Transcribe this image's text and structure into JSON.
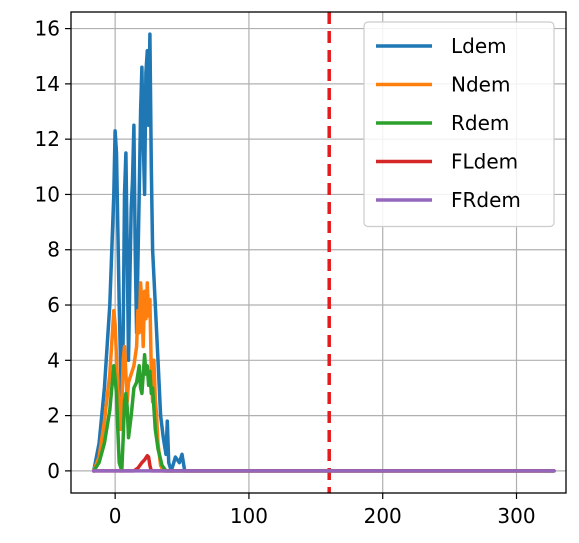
{
  "chart_data": {
    "type": "line",
    "title": "",
    "xlabel": "",
    "ylabel": "",
    "xlim": [
      -33,
      337
    ],
    "ylim": [
      -0.8,
      16.6
    ],
    "grid": true,
    "legend_position": "upper-right",
    "x_ticks": [
      0,
      100,
      200,
      300
    ],
    "y_ticks": [
      0,
      2,
      4,
      6,
      8,
      10,
      12,
      14,
      16
    ],
    "reference_line": {
      "x": 160,
      "color": "#e41a1c",
      "style": "dashed"
    },
    "series": [
      {
        "name": "Ldem",
        "color": "#1f77b4",
        "points": [
          [
            -16,
            0
          ],
          [
            -12,
            1
          ],
          [
            -8,
            3
          ],
          [
            -4,
            6
          ],
          [
            -1,
            10
          ],
          [
            0,
            12.3
          ],
          [
            1,
            11.5
          ],
          [
            3,
            6
          ],
          [
            5,
            2
          ],
          [
            6,
            5
          ],
          [
            7,
            10
          ],
          [
            8,
            11.5
          ],
          [
            9,
            8
          ],
          [
            10,
            4
          ],
          [
            11,
            7
          ],
          [
            12,
            9.5
          ],
          [
            13,
            10.5
          ],
          [
            14,
            12.5
          ],
          [
            15,
            8
          ],
          [
            16,
            5
          ],
          [
            17,
            7.5
          ],
          [
            18,
            10
          ],
          [
            19,
            13
          ],
          [
            20,
            14.6
          ],
          [
            21,
            12
          ],
          [
            22,
            10
          ],
          [
            23,
            14.4
          ],
          [
            24,
            15.2
          ],
          [
            25,
            12.5
          ],
          [
            26,
            15.8
          ],
          [
            27,
            11
          ],
          [
            28,
            8
          ],
          [
            30,
            6
          ],
          [
            32,
            4
          ],
          [
            34,
            2
          ],
          [
            36,
            1.2
          ],
          [
            38,
            0.6
          ],
          [
            39,
            1.8
          ],
          [
            40,
            0.3
          ],
          [
            42,
            0
          ],
          [
            45,
            0.5
          ],
          [
            48,
            0.3
          ],
          [
            50,
            0.6
          ],
          [
            52,
            0
          ],
          [
            60,
            0
          ],
          [
            80,
            0
          ],
          [
            120,
            0
          ],
          [
            200,
            0
          ],
          [
            260,
            0
          ],
          [
            328,
            0
          ]
        ]
      },
      {
        "name": "Ndem",
        "color": "#ff7f0e",
        "points": [
          [
            -16,
            0
          ],
          [
            -12,
            0.5
          ],
          [
            -8,
            1.8
          ],
          [
            -4,
            3.5
          ],
          [
            -1,
            5.8
          ],
          [
            0,
            5.3
          ],
          [
            2,
            3
          ],
          [
            4,
            1.5
          ],
          [
            5,
            2.5
          ],
          [
            6,
            4
          ],
          [
            7,
            4.5
          ],
          [
            8,
            3.5
          ],
          [
            9,
            2.5
          ],
          [
            10,
            3.2
          ],
          [
            12,
            3.5
          ],
          [
            14,
            3.8
          ],
          [
            16,
            4.5
          ],
          [
            17,
            5.8
          ],
          [
            18,
            5
          ],
          [
            19,
            6.8
          ],
          [
            20,
            6
          ],
          [
            21,
            4.5
          ],
          [
            22,
            6.5
          ],
          [
            23,
            5.5
          ],
          [
            24,
            6.8
          ],
          [
            25,
            5.6
          ],
          [
            26,
            6.2
          ],
          [
            27,
            3.6
          ],
          [
            28,
            2.5
          ],
          [
            29,
            4
          ],
          [
            30,
            2.6
          ],
          [
            31,
            2
          ],
          [
            32,
            1
          ],
          [
            34,
            0.2
          ],
          [
            36,
            0
          ],
          [
            60,
            0
          ],
          [
            150,
            0
          ],
          [
            250,
            0
          ],
          [
            328,
            0
          ]
        ]
      },
      {
        "name": "Rdem",
        "color": "#2ca02c",
        "points": [
          [
            -16,
            0
          ],
          [
            -12,
            0.3
          ],
          [
            -8,
            1
          ],
          [
            -4,
            2.2
          ],
          [
            -1,
            3.8
          ],
          [
            1,
            2.8
          ],
          [
            2,
            1.5
          ],
          [
            3,
            0.3
          ],
          [
            5,
            0
          ],
          [
            6,
            1.2
          ],
          [
            7,
            2.5
          ],
          [
            8,
            2.8
          ],
          [
            9,
            2.3
          ],
          [
            10,
            1.2
          ],
          [
            12,
            2
          ],
          [
            14,
            3
          ],
          [
            16,
            3.2
          ],
          [
            18,
            3.8
          ],
          [
            19,
            3
          ],
          [
            20,
            2.8
          ],
          [
            22,
            4.2
          ],
          [
            23,
            3.5
          ],
          [
            24,
            3.8
          ],
          [
            25,
            3.1
          ],
          [
            26,
            3.6
          ],
          [
            27,
            2.8
          ],
          [
            28,
            3
          ],
          [
            30,
            1.5
          ],
          [
            32,
            0.8
          ],
          [
            35,
            0.2
          ],
          [
            38,
            0
          ],
          [
            60,
            0
          ],
          [
            150,
            0
          ],
          [
            250,
            0
          ],
          [
            328,
            0
          ]
        ]
      },
      {
        "name": "FLdem",
        "color": "#d62728",
        "points": [
          [
            -16,
            0
          ],
          [
            0,
            0
          ],
          [
            14,
            0
          ],
          [
            17,
            0.1
          ],
          [
            20,
            0.3
          ],
          [
            22,
            0.4
          ],
          [
            24,
            0.55
          ],
          [
            25,
            0.5
          ],
          [
            26,
            0.2
          ],
          [
            27,
            0
          ],
          [
            40,
            0
          ],
          [
            100,
            0
          ],
          [
            200,
            0
          ],
          [
            328,
            0
          ]
        ]
      },
      {
        "name": "FRdem",
        "color": "#9467bd",
        "points": [
          [
            -16,
            0
          ],
          [
            50,
            0
          ],
          [
            100,
            0
          ],
          [
            200,
            0
          ],
          [
            328,
            0
          ]
        ]
      }
    ]
  }
}
